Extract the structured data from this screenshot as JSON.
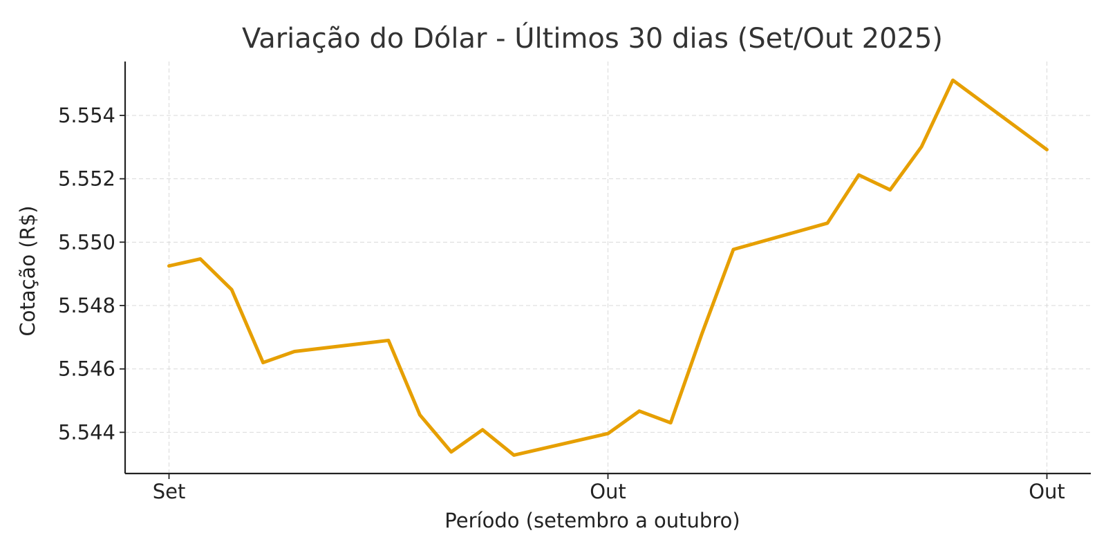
{
  "colors": {
    "series": "#E69F00",
    "text": "#333333",
    "axis": "#222222",
    "grid": "#d9d9d9"
  },
  "chart_data": {
    "type": "line",
    "title": "Variação do Dólar - Últimos 30 dias (Set/Out 2025)",
    "xlabel": "Período (setembro a outubro)",
    "ylabel": "Cotação (R$)",
    "xlim": [
      -1.4,
      29.4
    ],
    "ylim": [
      5.5427,
      5.5557
    ],
    "xticks": [
      {
        "value": 0,
        "label": "Set"
      },
      {
        "value": 14,
        "label": "Out"
      },
      {
        "value": 28,
        "label": "Out"
      }
    ],
    "yticks": [
      {
        "value": 5.544,
        "label": "5.544"
      },
      {
        "value": 5.546,
        "label": "5.546"
      },
      {
        "value": 5.548,
        "label": "5.548"
      },
      {
        "value": 5.55,
        "label": "5.550"
      },
      {
        "value": 5.552,
        "label": "5.552"
      },
      {
        "value": 5.554,
        "label": "5.554"
      }
    ],
    "grid": true,
    "legend": "none",
    "series": [
      {
        "color": "#E69F00",
        "x": [
          0,
          1,
          2,
          3,
          4,
          7,
          8,
          9,
          10,
          11,
          14,
          15,
          16,
          17,
          18,
          21,
          22,
          23,
          24,
          25,
          28
        ],
        "y": [
          5.54925,
          5.54947,
          5.5485,
          5.5462,
          5.54655,
          5.5469,
          5.54455,
          5.54338,
          5.54408,
          5.54328,
          5.54396,
          5.54467,
          5.5443,
          5.54712,
          5.54977,
          5.5506,
          5.55212,
          5.55165,
          5.55301,
          5.55511,
          5.55292
        ]
      }
    ]
  }
}
